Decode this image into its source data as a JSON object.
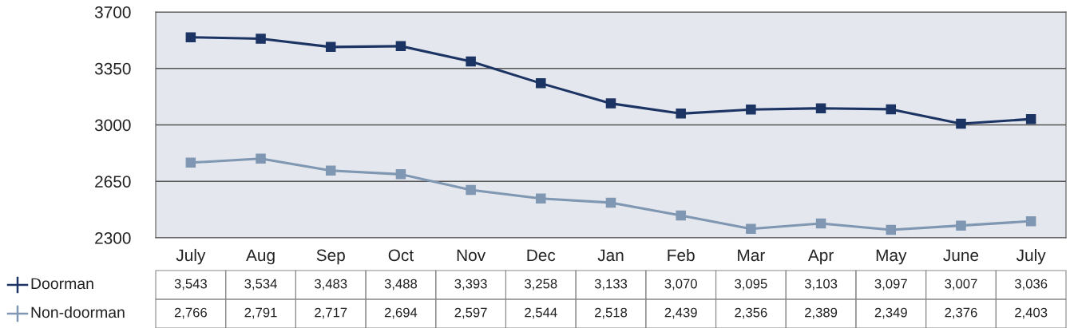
{
  "chart_data": {
    "type": "line",
    "categories": [
      "July",
      "Aug",
      "Sep",
      "Oct",
      "Nov",
      "Dec",
      "Jan",
      "Feb",
      "Mar",
      "Apr",
      "May",
      "June",
      "July"
    ],
    "series": [
      {
        "name": "Doorman",
        "color": "#1c3463",
        "values": [
          3543,
          3534,
          3483,
          3488,
          3393,
          3258,
          3133,
          3070,
          3095,
          3103,
          3097,
          3007,
          3036
        ],
        "value_labels": [
          "3,543",
          "3,534",
          "3,483",
          "3,488",
          "3,393",
          "3,258",
          "3,133",
          "3,070",
          "3,095",
          "3,103",
          "3,097",
          "3,007",
          "3,036"
        ]
      },
      {
        "name": "Non-doorman",
        "color": "#7f97b2",
        "values": [
          2766,
          2791,
          2717,
          2694,
          2597,
          2544,
          2518,
          2439,
          2356,
          2389,
          2349,
          2376,
          2403
        ],
        "value_labels": [
          "2,766",
          "2,791",
          "2,717",
          "2,694",
          "2,597",
          "2,544",
          "2,518",
          "2,439",
          "2,356",
          "2,389",
          "2,349",
          "2,376",
          "2,403"
        ]
      }
    ],
    "ylim": [
      2300,
      3700
    ],
    "yticks": [
      2300,
      2650,
      3000,
      3350,
      3700
    ],
    "grid": "y",
    "marker": "square",
    "line_style": "solid",
    "legend": "bottom left"
  }
}
